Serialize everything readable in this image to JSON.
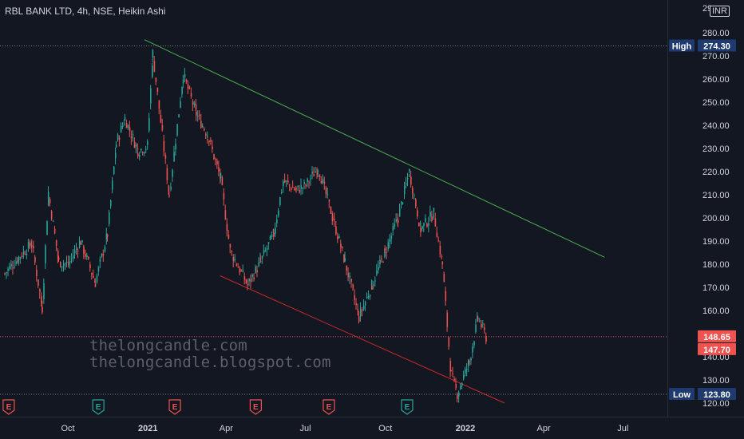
{
  "header": {
    "title": "RBL BANK LTD, 4h, NSE, Heikin Ashi",
    "currency": "INR"
  },
  "watermark": {
    "line1": "thelongcandle.com",
    "line2": "thelongcandle.blogspot.com"
  },
  "colors": {
    "background": "#131722",
    "up": "#26a69a",
    "down": "#ef5350",
    "upper_trendline": "#4caf50",
    "lower_trendline": "#c62828",
    "axis_text": "#d1d4dc",
    "label_bg": "#1e3a6e"
  },
  "chart_data": {
    "type": "candlestick",
    "symbol": "RBL BANK LTD",
    "timeframe": "4h",
    "exchange": "NSE",
    "style": "Heikin Ashi",
    "ylim": [
      115,
      290
    ],
    "y_ticks": [
      "120.00",
      "130.00",
      "140.00",
      "150.00",
      "160.00",
      "170.00",
      "180.00",
      "190.00",
      "200.00",
      "210.00",
      "220.00",
      "230.00",
      "240.00",
      "250.00",
      "260.00",
      "270.00",
      "280.00"
    ],
    "x_ticks": [
      "Oct",
      "2021",
      "Apr",
      "Jul",
      "Oct",
      "2022",
      "Apr",
      "Jul"
    ],
    "series": [
      {
        "x": "2020-07-20",
        "close": 176
      },
      {
        "x": "2020-08-05",
        "close": 183
      },
      {
        "x": "2020-08-20",
        "close": 189
      },
      {
        "x": "2020-09-01",
        "close": 161
      },
      {
        "x": "2020-09-08",
        "close": 211
      },
      {
        "x": "2020-09-20",
        "close": 181
      },
      {
        "x": "2020-10-01",
        "close": 180
      },
      {
        "x": "2020-10-15",
        "close": 190
      },
      {
        "x": "2020-11-01",
        "close": 172
      },
      {
        "x": "2020-11-15",
        "close": 193
      },
      {
        "x": "2020-11-25",
        "close": 232
      },
      {
        "x": "2020-12-05",
        "close": 243
      },
      {
        "x": "2020-12-20",
        "close": 229
      },
      {
        "x": "2020-12-31",
        "close": 231
      },
      {
        "x": "2021-01-06",
        "close": 271
      },
      {
        "x": "2021-01-25",
        "close": 210
      },
      {
        "x": "2021-02-10",
        "close": 262
      },
      {
        "x": "2021-02-25",
        "close": 245
      },
      {
        "x": "2021-03-10",
        "close": 236
      },
      {
        "x": "2021-03-25",
        "close": 217
      },
      {
        "x": "2021-04-05",
        "close": 186
      },
      {
        "x": "2021-04-25",
        "close": 171
      },
      {
        "x": "2021-05-10",
        "close": 181
      },
      {
        "x": "2021-05-25",
        "close": 193
      },
      {
        "x": "2021-06-05",
        "close": 216
      },
      {
        "x": "2021-06-20",
        "close": 212
      },
      {
        "x": "2021-07-01",
        "close": 214
      },
      {
        "x": "2021-07-15",
        "close": 222
      },
      {
        "x": "2021-08-01",
        "close": 200
      },
      {
        "x": "2021-08-15",
        "close": 181
      },
      {
        "x": "2021-08-31",
        "close": 157
      },
      {
        "x": "2021-09-15",
        "close": 171
      },
      {
        "x": "2021-09-30",
        "close": 185
      },
      {
        "x": "2021-10-15",
        "close": 200
      },
      {
        "x": "2021-10-28",
        "close": 220
      },
      {
        "x": "2021-11-10",
        "close": 195
      },
      {
        "x": "2021-11-25",
        "close": 202
      },
      {
        "x": "2021-12-05",
        "close": 180
      },
      {
        "x": "2021-12-15",
        "close": 132
      },
      {
        "x": "2021-12-22",
        "close": 124
      },
      {
        "x": "2022-01-05",
        "close": 138
      },
      {
        "x": "2022-01-15",
        "close": 157
      },
      {
        "x": "2022-01-25",
        "close": 147.7
      }
    ],
    "trendlines": [
      {
        "name": "upper",
        "from": {
          "x": "2020-12-28",
          "y": 277
        },
        "to": {
          "x": "2022-06-10",
          "y": 183
        }
      },
      {
        "name": "lower",
        "from": {
          "x": "2021-03-25",
          "y": 175
        },
        "to": {
          "x": "2022-02-15",
          "y": 120
        }
      }
    ],
    "price_labels": {
      "high_label": "High",
      "high_value": "274.30",
      "low_label": "Low",
      "low_value": "123.80",
      "last_price": "148.65",
      "current_price": "147.70"
    },
    "top_partial_tick": "29",
    "events": [
      {
        "x": "2020-07-25",
        "label": "E"
      },
      {
        "x": "2020-11-05",
        "label": "E"
      },
      {
        "x": "2021-02-01",
        "label": "E"
      },
      {
        "x": "2021-05-05",
        "label": "E"
      },
      {
        "x": "2021-07-28",
        "label": "E"
      },
      {
        "x": "2021-10-26",
        "label": "E"
      }
    ]
  }
}
